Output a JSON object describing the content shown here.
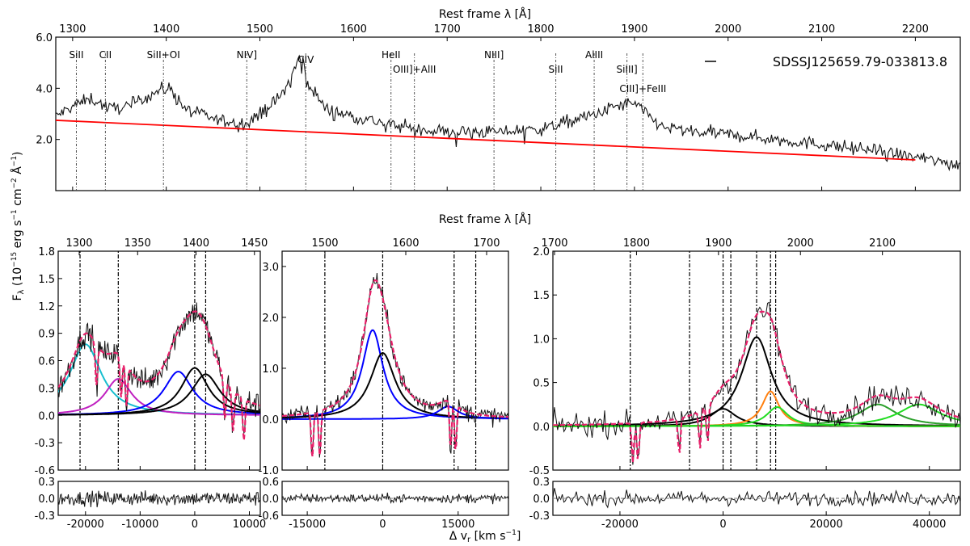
{
  "figure": {
    "ylabel": "F_λ (10^-15 erg s^-1 cm^-2 Å^-1)",
    "xlabel_bottom": "Δ v_r [km s^-1]",
    "colors": {
      "data": "#111111",
      "fit": "#e8206a",
      "continuum": "#ff0000",
      "black_comp": "#000000",
      "blue_comp": "#0000ff",
      "cyan_comp": "#17becf",
      "magenta_comp": "#c020c0",
      "orange_comp": "#ff7f0e",
      "green_comp": "#2ca02c",
      "lime_comp": "#22dd22",
      "brown_comp": "#8b4513"
    }
  },
  "chart_data": [
    {
      "id": "overview",
      "type": "line",
      "xlabel": "Rest frame λ [Å]",
      "xlim": [
        1282,
        2248
      ],
      "ylim": [
        0,
        6.0
      ],
      "xticks": [
        "1300",
        "1400",
        "1500",
        "1600",
        "1700",
        "1800",
        "1900",
        "2000",
        "2100",
        "2200"
      ],
      "yticks": [
        "2.0",
        "4.0",
        "6.0"
      ],
      "legend": "SDSSJ125659.79-033813.8",
      "continuum": {
        "x": [
          1282,
          2200
        ],
        "y": [
          2.75,
          1.2
        ]
      },
      "spectrum_anchors": {
        "x": [
          1282,
          1300,
          1320,
          1340,
          1360,
          1380,
          1395,
          1405,
          1420,
          1450,
          1480,
          1500,
          1520,
          1535,
          1540,
          1545,
          1550,
          1570,
          1600,
          1650,
          1700,
          1750,
          1800,
          1830,
          1860,
          1880,
          1895,
          1905,
          1915,
          1930,
          1960,
          2000,
          2050,
          2100,
          2150,
          2200,
          2248
        ],
        "y": [
          2.9,
          3.3,
          3.6,
          3.2,
          3.3,
          3.7,
          3.95,
          4.0,
          3.2,
          2.8,
          2.6,
          3.0,
          3.6,
          4.5,
          5.1,
          5.2,
          4.3,
          3.2,
          2.9,
          2.5,
          2.3,
          2.3,
          2.4,
          2.7,
          3.0,
          3.3,
          3.4,
          3.3,
          2.9,
          2.5,
          2.3,
          2.2,
          2.0,
          1.8,
          1.6,
          1.3,
          1.0
        ]
      },
      "lines": [
        {
          "name": "SiII",
          "x": 1304
        },
        {
          "name": "CII",
          "x": 1335
        },
        {
          "name": "SiII+OI",
          "x": 1397
        },
        {
          "name": "NIV]",
          "x": 1486
        },
        {
          "name": "CIV",
          "x": 1549
        },
        {
          "name": "HeII",
          "x": 1640
        },
        {
          "name": "OIII]+AlII",
          "x": 1665
        },
        {
          "name": "NIII]",
          "x": 1750
        },
        {
          "name": "SiII",
          "x": 1816
        },
        {
          "name": "AlIII",
          "x": 1857
        },
        {
          "name": "SiIII]",
          "x": 1892
        },
        {
          "name": "CIII]+FeIII",
          "x": 1909
        }
      ]
    },
    {
      "id": "panel_si4",
      "type": "line",
      "xlabel_top": "Rest frame λ [Å]",
      "top_xticks": [
        "1300",
        "1350",
        "1400",
        "1450"
      ],
      "xticks": [
        "-20000",
        "-10000",
        "0",
        "10000"
      ],
      "xlim_kms": [
        -25000,
        12000
      ],
      "ylim": [
        -0.6,
        1.8
      ],
      "yticks": [
        "-0.6",
        "-0.3",
        "0.0",
        "0.3",
        "0.6",
        "0.9",
        "1.2",
        "1.5",
        "1.8"
      ],
      "resid_yticks": [
        "-0.3",
        "0.0",
        "0.3"
      ],
      "resid_ylim": [
        -0.3,
        0.3
      ],
      "vlines_kms": [
        -21000,
        -14000,
        0,
        2000
      ],
      "components": [
        {
          "color": "cyan",
          "center": -20000,
          "amp": 0.78,
          "width": 3500
        },
        {
          "color": "magenta",
          "center": -14000,
          "amp": 0.4,
          "width": 3000
        },
        {
          "color": "blue",
          "center": -3000,
          "amp": 0.48,
          "width": 3200
        },
        {
          "color": "black",
          "center": 0,
          "amp": 0.52,
          "width": 3000
        },
        {
          "color": "black",
          "center": 2000,
          "amp": 0.45,
          "width": 3200
        }
      ]
    },
    {
      "id": "panel_c4",
      "type": "line",
      "top_xticks": [
        "1500",
        "1600",
        "1700"
      ],
      "xticks": [
        "-15000",
        "0",
        "15000"
      ],
      "xlim_kms": [
        -20000,
        25000
      ],
      "ylim": [
        -1.0,
        3.3
      ],
      "yticks": [
        "-1.0",
        "0.0",
        "1.0",
        "2.0",
        "3.0"
      ],
      "resid_yticks": [
        "-0.6",
        "0.0",
        "0.6"
      ],
      "resid_ylim": [
        -0.6,
        0.6
      ],
      "vlines_kms": [
        -11500,
        0,
        14200,
        18500
      ],
      "components": [
        {
          "color": "blue",
          "center": -2000,
          "amp": 1.75,
          "width": 2500
        },
        {
          "color": "black",
          "center": 0,
          "amp": 1.3,
          "width": 3000
        },
        {
          "color": "blue",
          "center": 13000,
          "amp": 0.25,
          "width": 2500
        }
      ]
    },
    {
      "id": "panel_c3",
      "type": "line",
      "top_xticks": [
        "1700",
        "1800",
        "1900",
        "2000",
        "2100"
      ],
      "xticks": [
        "-20000",
        "0",
        "20000",
        "40000"
      ],
      "xlim_kms": [
        -33000,
        46000
      ],
      "ylim": [
        -0.5,
        2.0
      ],
      "yticks": [
        "-0.5",
        "0.0",
        "0.5",
        "1.0",
        "1.5",
        "2.0"
      ],
      "resid_yticks": [
        "-0.3",
        "0.0",
        "0.3"
      ],
      "resid_ylim": [
        -0.3,
        0.3
      ],
      "vlines_kms": [
        -18000,
        -6500,
        0,
        1500,
        6500,
        9200,
        10200
      ],
      "components": [
        {
          "color": "black",
          "center": 6500,
          "amp": 1.02,
          "width": 3500
        },
        {
          "color": "black",
          "center": 0,
          "amp": 0.2,
          "width": 3000
        },
        {
          "color": "orange",
          "center": 9200,
          "amp": 0.4,
          "width": 2000
        },
        {
          "color": "lime",
          "center": 10500,
          "amp": 0.22,
          "width": 2500
        },
        {
          "color": "green",
          "center": 30000,
          "amp": 0.25,
          "width": 4500
        },
        {
          "color": "lime",
          "center": 38000,
          "amp": 0.25,
          "width": 5000
        }
      ]
    }
  ]
}
